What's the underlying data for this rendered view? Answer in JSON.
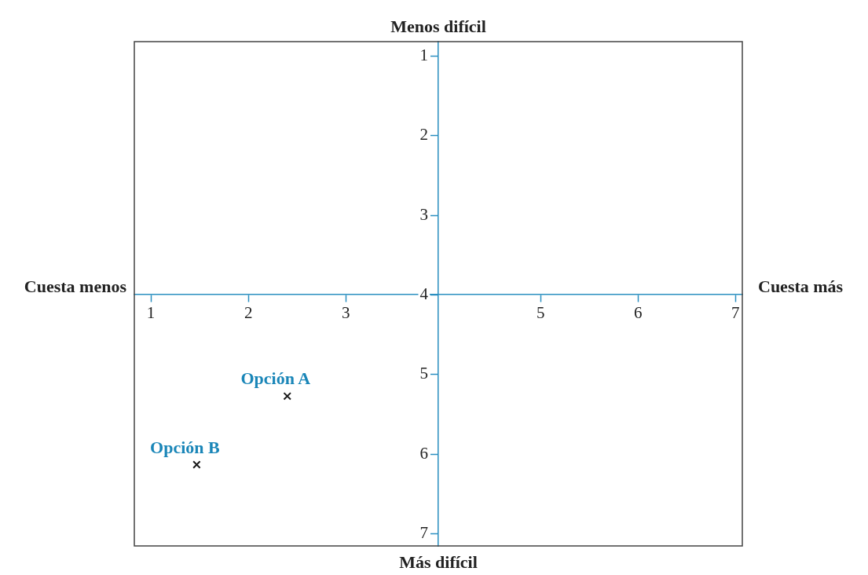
{
  "chart_data": {
    "type": "scatter",
    "marker": "cross",
    "grid": false,
    "xlim": [
      0.83,
      7.07
    ],
    "xticks": [
      1,
      2,
      3,
      5,
      6,
      7
    ],
    "ylim": [
      7.15,
      0.82
    ],
    "yticks": [
      1,
      2,
      3,
      4,
      5,
      6,
      7
    ],
    "annotations": [
      "Menos difícil",
      "Más difícil",
      "Cuesta menos",
      "Cuesta más"
    ],
    "series": [
      {
        "name": "Opción A",
        "color": "#1a1a1a",
        "x": [
          2.4
        ],
        "values": [
          5.27
        ]
      },
      {
        "name": "Opción B",
        "color": "#1a1a1a",
        "x": [
          1.47
        ],
        "values": [
          6.13
        ]
      }
    ]
  }
}
